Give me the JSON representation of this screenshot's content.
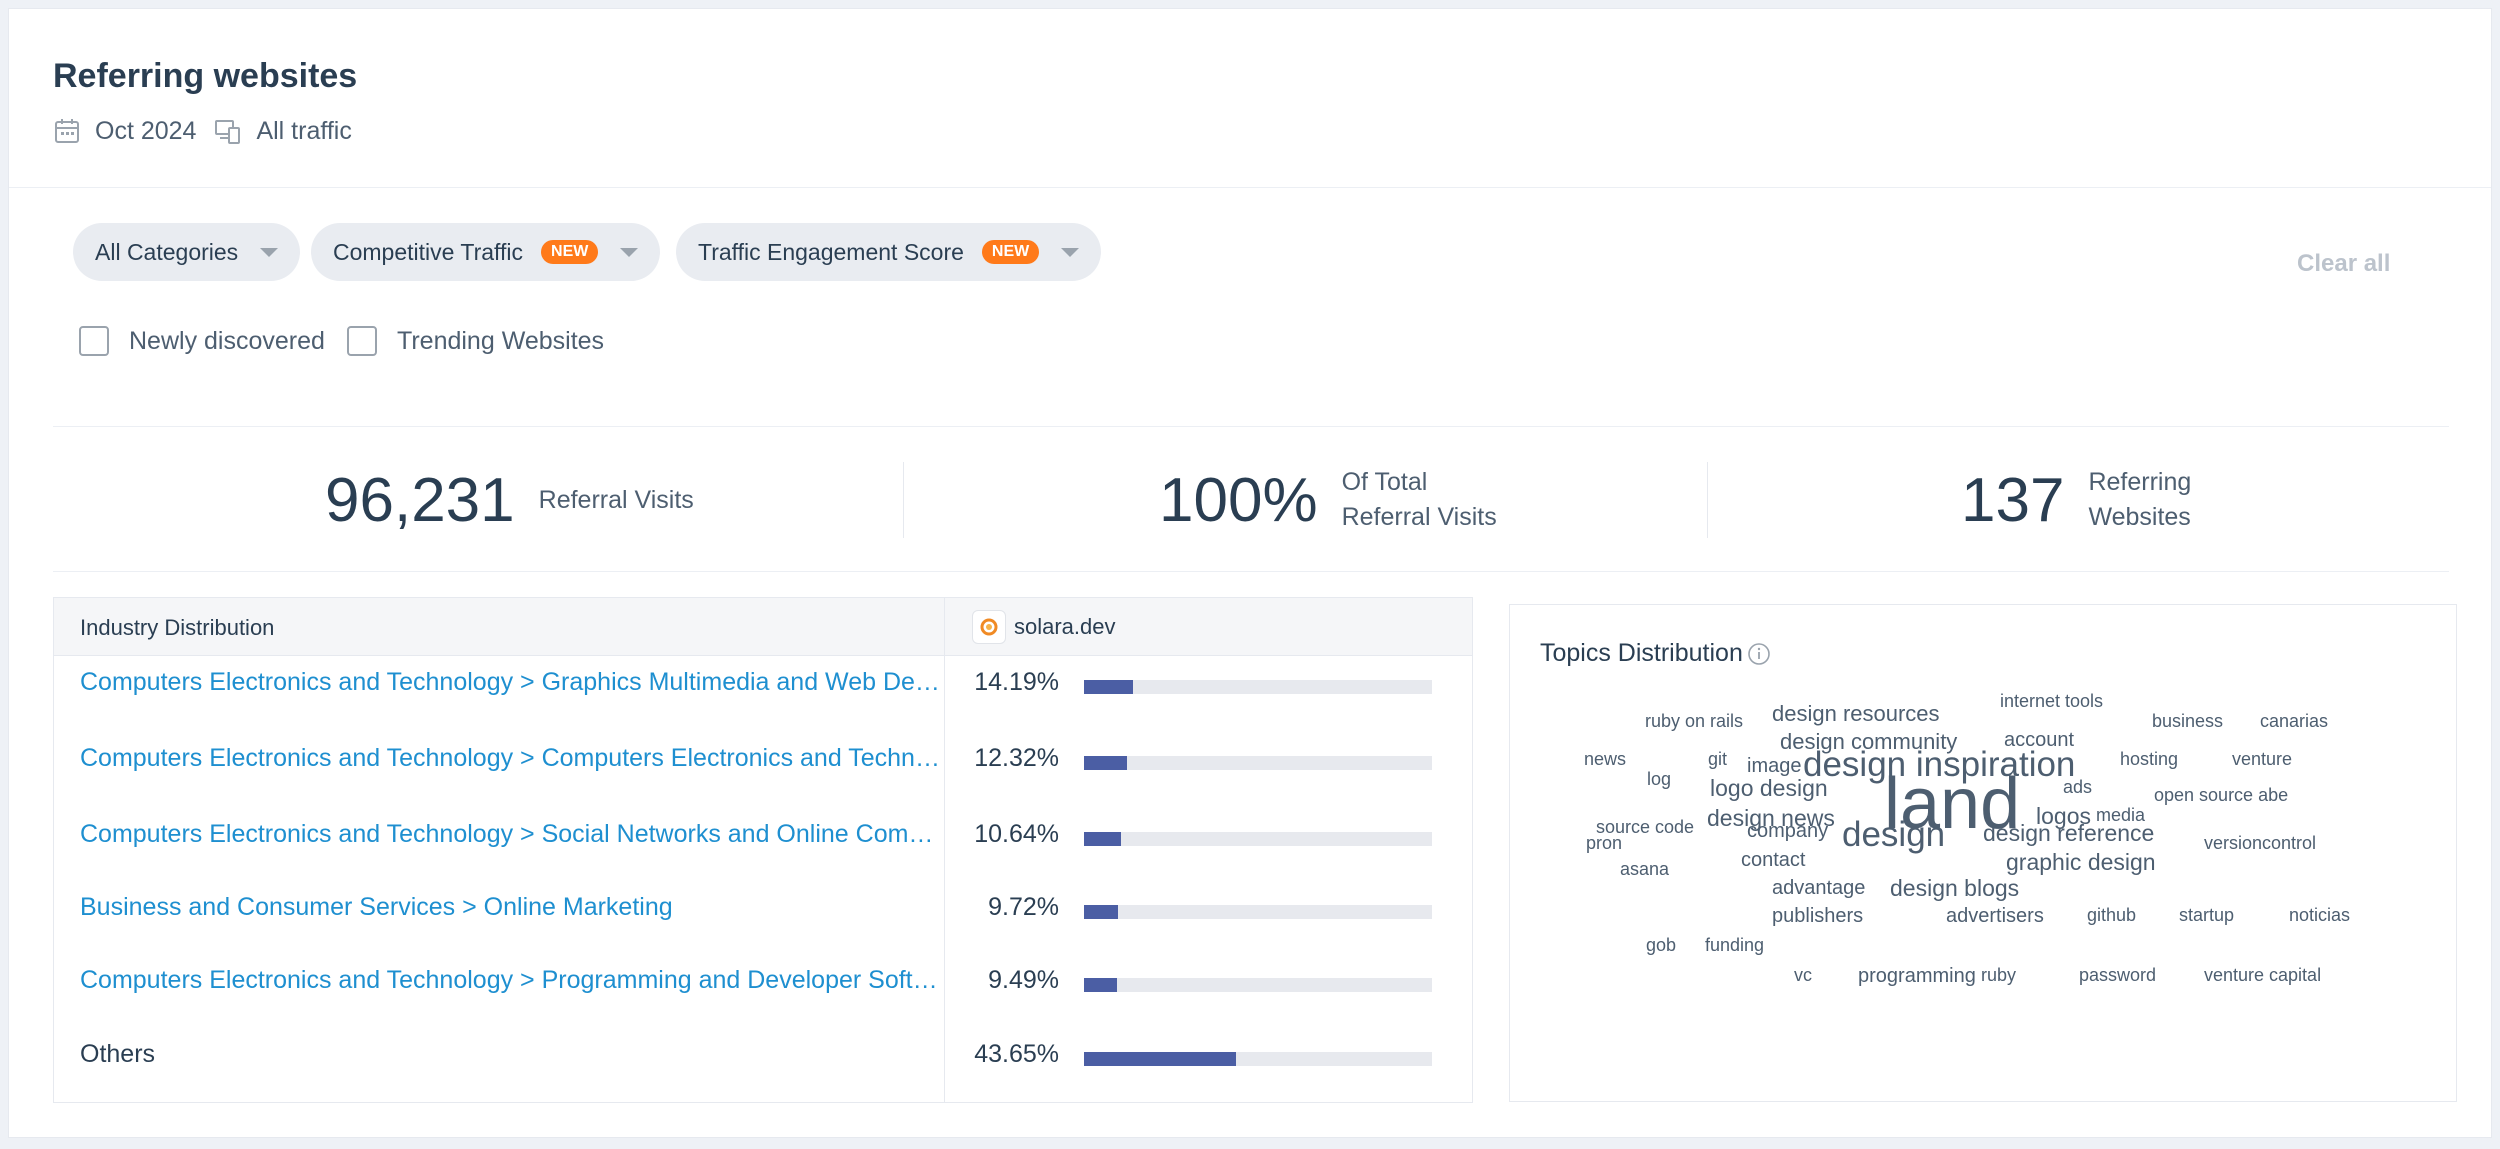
{
  "header": {
    "title": "Referring websites",
    "date": "Oct 2024",
    "traffic": "All traffic"
  },
  "filters": {
    "chips": [
      {
        "label": "All Categories",
        "badge": ""
      },
      {
        "label": "Competitive Traffic",
        "badge": "NEW"
      },
      {
        "label": "Traffic Engagement Score",
        "badge": "NEW"
      }
    ],
    "clear_all": "Clear all",
    "checkboxes": [
      {
        "label": "Newly discovered",
        "checked": false
      },
      {
        "label": "Trending Websites",
        "checked": false
      }
    ]
  },
  "stats": [
    {
      "value": "96,231",
      "label_line1": "Referral Visits",
      "label_line2": ""
    },
    {
      "value": "100%",
      "label_line1": "Of Total",
      "label_line2": "Referral Visits"
    },
    {
      "value": "137",
      "label_line1": "Referring",
      "label_line2": "Websites"
    }
  ],
  "industry": {
    "col_category": "Industry Distribution",
    "col_site": "solara.dev",
    "rows": [
      {
        "category": "Computers Electronics and Technology > Graphics Multimedia and Web Design",
        "pct": "14.19%",
        "value": 14.19
      },
      {
        "category": "Computers Electronics and Technology > Computers Electronics and Technology",
        "pct": "12.32%",
        "value": 12.32
      },
      {
        "category": "Computers Electronics and Technology > Social Networks and Online Communities",
        "pct": "10.64%",
        "value": 10.64
      },
      {
        "category": "Business and Consumer Services > Online Marketing",
        "pct": "9.72%",
        "value": 9.72
      },
      {
        "category": "Computers Electronics and Technology > Programming and Developer Software",
        "pct": "9.49%",
        "value": 9.49
      },
      {
        "category": "Others",
        "pct": "43.65%",
        "value": 43.65
      }
    ]
  },
  "topics": {
    "title": "Topics Distribution",
    "words": [
      "design resources",
      "internet tools",
      "ruby on rails",
      "design community",
      "account",
      "business",
      "canarias",
      "news",
      "git",
      "image",
      "design inspiration",
      "hosting",
      "venture",
      "log",
      "logo design",
      "land",
      "ads",
      "open source abe",
      "design news",
      "logos",
      "media",
      "source code",
      "company",
      "design reference",
      "pron",
      "design",
      "versioncontrol",
      "contact",
      "graphic design",
      "asana",
      "advantage",
      "design blogs",
      "publishers",
      "advertisers",
      "github",
      "startup",
      "noticias",
      "gob",
      "funding",
      "vc",
      "programming",
      "ruby",
      "password",
      "venture capital"
    ]
  },
  "colors": {
    "link": "#1e8fd0",
    "bar": "#4b5ea4",
    "badge": "#ff7a1a"
  }
}
